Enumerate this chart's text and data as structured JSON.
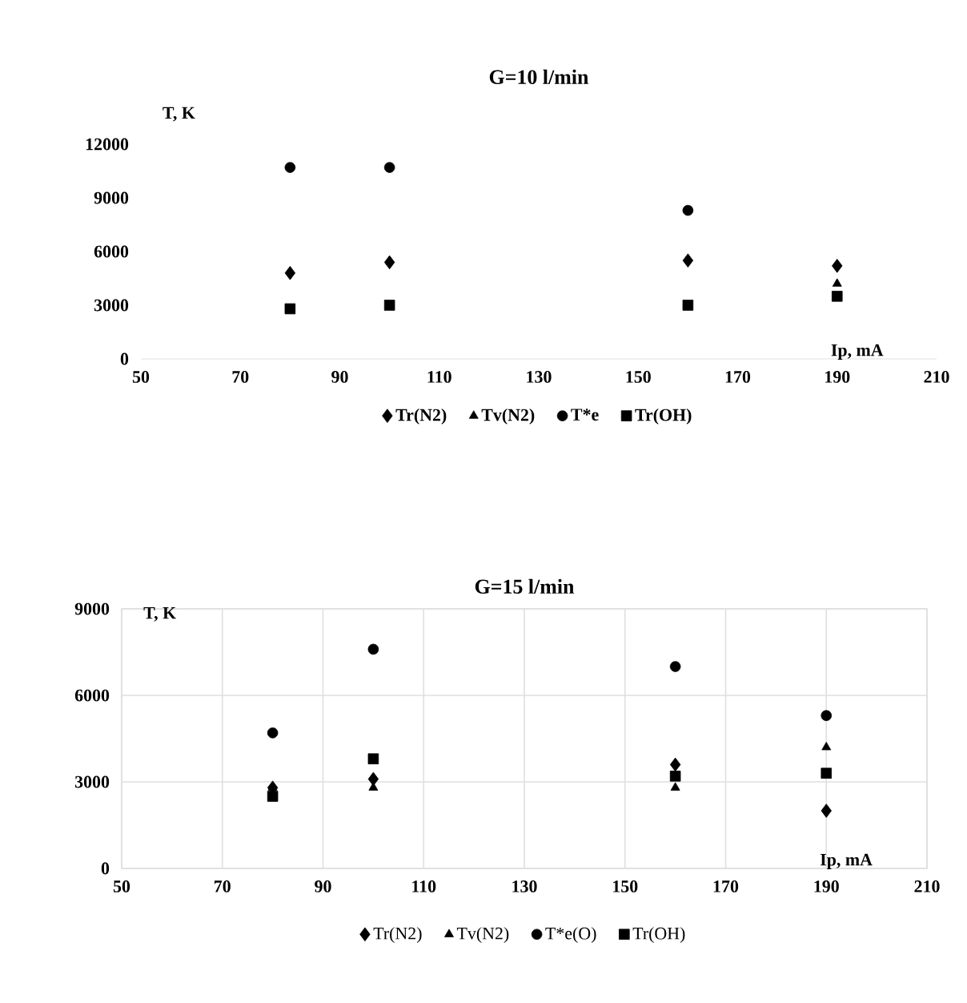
{
  "chart_data": [
    {
      "type": "scatter",
      "title": "G=10 l/min",
      "xlabel": "Ip, mA",
      "ylabel": "T, K",
      "x": [
        80,
        100,
        160,
        190
      ],
      "series": [
        {
          "name": "Tr(N2)",
          "color": "#000000",
          "marker": "diamond",
          "values": [
            4800,
            5400,
            5500,
            5200
          ]
        },
        {
          "name": "Tv(N2)",
          "color": "#000000",
          "marker": "triangle",
          "values": [
            null,
            null,
            null,
            4200
          ]
        },
        {
          "name": "T*e",
          "color": "#000000",
          "marker": "circle",
          "values": [
            10700,
            10700,
            8300,
            null
          ]
        },
        {
          "name": "Tr(OH)",
          "color": "#000000",
          "marker": "square",
          "values": [
            2800,
            3000,
            3000,
            3500
          ]
        }
      ],
      "xlim": [
        50,
        210
      ],
      "xticks": [
        50,
        70,
        90,
        110,
        130,
        150,
        170,
        190,
        210
      ],
      "ylim": [
        0,
        12000
      ],
      "yticks": [
        0,
        3000,
        6000,
        9000,
        12000
      ],
      "grid": false,
      "legend": "bottom"
    },
    {
      "type": "scatter",
      "title": "G=15 l/min",
      "xlabel": "Ip, mA",
      "ylabel": "T, K",
      "x": [
        80,
        100,
        160,
        190
      ],
      "series": [
        {
          "name": "Tr(N2)",
          "color": "#000000",
          "marker": "diamond",
          "values": [
            2800,
            3100,
            3600,
            2000
          ]
        },
        {
          "name": "Tv(N2)",
          "color": "#000000",
          "marker": "triangle",
          "values": [
            2800,
            2800,
            2800,
            4200
          ]
        },
        {
          "name": "T*e(O)",
          "color": "#000000",
          "marker": "circle",
          "values": [
            4700,
            7600,
            7000,
            5300
          ]
        },
        {
          "name": "Tr(OH)",
          "color": "#000000",
          "marker": "square",
          "values": [
            2500,
            3800,
            3200,
            3300
          ]
        }
      ],
      "xlim": [
        50,
        210
      ],
      "xticks": [
        50,
        70,
        90,
        110,
        130,
        150,
        170,
        190,
        210
      ],
      "ylim": [
        0,
        9000
      ],
      "yticks": [
        0,
        3000,
        6000,
        9000
      ],
      "grid": true,
      "legend": "bottom"
    }
  ]
}
